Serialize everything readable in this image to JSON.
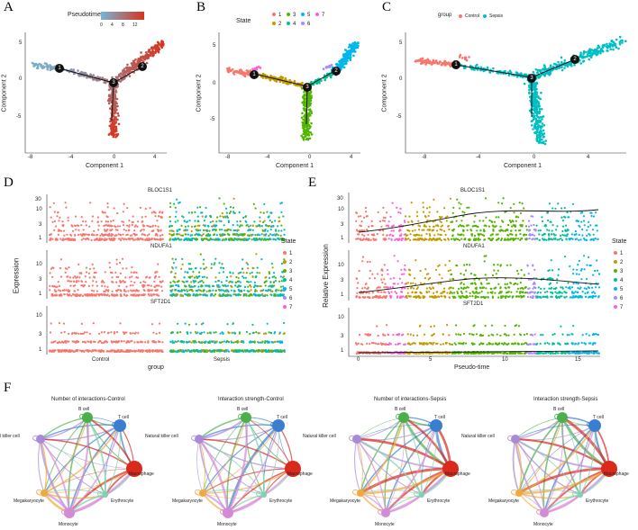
{
  "panels": {
    "A": {
      "letter": "A",
      "legend_title": "Pseudotime",
      "legend_ticks": [
        "0",
        "4",
        "8",
        "12"
      ],
      "xlabel": "Component 1",
      "ylabel": "Component 2",
      "x_ticks": [
        "-8",
        "-4",
        "0",
        "4"
      ],
      "y_ticks": [
        "5",
        "0",
        "-5"
      ],
      "branch_nodes": [
        "1",
        "2",
        "3"
      ],
      "colors": {
        "low": "#74b6d6",
        "high": "#d9331d"
      }
    },
    "B": {
      "letter": "B",
      "legend_title": "State",
      "states": [
        {
          "label": "1",
          "color": "#f8766d"
        },
        {
          "label": "2",
          "color": "#c49a00"
        },
        {
          "label": "3",
          "color": "#53b400"
        },
        {
          "label": "4",
          "color": "#00c094"
        },
        {
          "label": "5",
          "color": "#00b6eb"
        },
        {
          "label": "6",
          "color": "#a58aff"
        },
        {
          "label": "7",
          "color": "#fb61d7"
        }
      ],
      "xlabel": "Component 1",
      "ylabel": "Component 2",
      "x_ticks": [
        "-8",
        "-4",
        "0",
        "4"
      ],
      "y_ticks": [
        "5",
        "0",
        "-5"
      ],
      "branch_nodes": [
        "1",
        "2",
        "3"
      ]
    },
    "C": {
      "letter": "C",
      "legend_title": "group",
      "groups": [
        {
          "label": "Control",
          "color": "#f8766d"
        },
        {
          "label": "Sepsis",
          "color": "#00bfc4"
        }
      ],
      "xlabel": "Component 1",
      "ylabel": "Component 2",
      "x_ticks": [
        "-8",
        "-4",
        "0",
        "4"
      ],
      "y_ticks": [
        "5",
        "0",
        "-5"
      ],
      "branch_nodes": [
        "1",
        "2",
        "3"
      ]
    },
    "D": {
      "letter": "D",
      "genes": [
        "BLOC1S1",
        "NDUFA1",
        "SFT2D1"
      ],
      "ylabel": "Expression",
      "xlabel": "group",
      "x_categories": [
        "Control",
        "Sepsis"
      ],
      "y_ticks_rows": [
        [
          "30",
          "10",
          "3",
          "1"
        ],
        [
          "10",
          "3",
          "1"
        ],
        [
          "10",
          "3",
          "1"
        ]
      ],
      "legend_title": "State",
      "legend_items": [
        "1",
        "2",
        "3",
        "4",
        "5",
        "6",
        "7"
      ]
    },
    "E": {
      "letter": "E",
      "genes": [
        "BLOC1S1",
        "NDUFA1",
        "SFT2D1"
      ],
      "ylabel": "Relative Expression",
      "xlabel": "Pseudo-time",
      "x_ticks": [
        "0",
        "5",
        "10",
        "15"
      ],
      "y_ticks_rows": [
        [
          "30",
          "10",
          "3",
          "1"
        ],
        [
          "10",
          "3",
          "1"
        ],
        [
          "10",
          "3",
          "1"
        ]
      ],
      "legend_title": "State",
      "legend_items": [
        "1",
        "2",
        "3",
        "4",
        "5",
        "6",
        "7"
      ]
    },
    "F": {
      "letter": "F",
      "networks": [
        {
          "title": "Number of interactions-Control",
          "style": "count_control"
        },
        {
          "title": "Interaction strength-Control",
          "style": "strength_control"
        },
        {
          "title": "Number of interactions-Sepsis",
          "style": "count_sepsis"
        },
        {
          "title": "Interaction strength-Sepsis",
          "style": "strength_sepsis"
        }
      ],
      "cell_types": [
        {
          "name": "B cell",
          "color": "#4cae4c"
        },
        {
          "name": "T cell",
          "color": "#3a7fcf"
        },
        {
          "name": "Macrophage",
          "color": "#d92a1c"
        },
        {
          "name": "Erythrocyte",
          "color": "#7fd2b0"
        },
        {
          "name": "Monocyte",
          "color": "#d58ad6"
        },
        {
          "name": "Megakaryocyte",
          "color": "#f0a93a"
        },
        {
          "name": "Natural killer cell",
          "color": "#a98ad8"
        }
      ],
      "node_labels": [
        "B cell",
        "T cell",
        "Natural killer cell",
        "Macrophage",
        "Megakaryocyte",
        "Erythrocyte",
        "Monocyte"
      ]
    }
  }
}
